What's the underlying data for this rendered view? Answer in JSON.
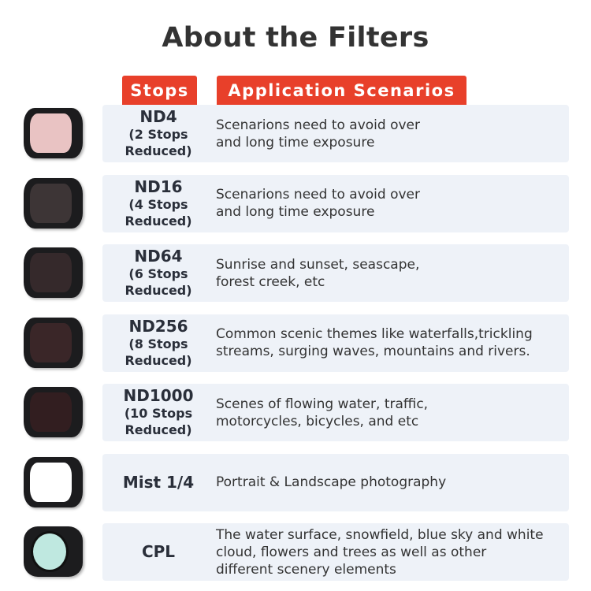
{
  "title": "About the Filters",
  "headers": {
    "stops": "Stops",
    "scenarios": "Application Scenarios"
  },
  "accent": "#e8402a",
  "rows": [
    {
      "name": "ND4",
      "stops": "(2 Stops",
      "reduced": "Reduced)",
      "l1": "Scenarions need to avoid over",
      "l2": "and long time exposure",
      "l3": "",
      "glass": "#e9c3c3"
    },
    {
      "name": "ND16",
      "stops": "(4 Stops",
      "reduced": "Reduced)",
      "l1": "Scenarions need to avoid over",
      "l2": "and long time exposure",
      "l3": "",
      "glass": "#3d3536"
    },
    {
      "name": "ND64",
      "stops": "(6 Stops",
      "reduced": "Reduced)",
      "l1": "Sunrise and sunset, seascape,",
      "l2": "forest creek, etc",
      "l3": "",
      "glass": "#35292b"
    },
    {
      "name": "ND256",
      "stops": "(8 Stops",
      "reduced": "Reduced)",
      "l1": "Common scenic themes like waterfalls,trickling",
      "l2": "streams, surging waves, mountains and rivers.",
      "l3": "",
      "glass": "#3a2628"
    },
    {
      "name": "ND1000",
      "stops": "(10 Stops",
      "reduced": "Reduced)",
      "l1": "Scenes of flowing water, traffic,",
      "l2": "motorcycles, bicycles, and etc",
      "l3": "",
      "glass": "#321e20"
    },
    {
      "name": "Mist 1/4",
      "stops": "",
      "reduced": "",
      "l1": "Portrait & Landscape photography",
      "l2": "",
      "l3": "",
      "glass": "#ffffff"
    },
    {
      "name": "CPL",
      "stops": "",
      "reduced": "",
      "l1": "The water surface, snowfield, blue sky and white",
      "l2": "cloud, flowers and trees as well as other",
      "l3": "different scenery elements",
      "glass": "#bfe8e0"
    }
  ]
}
